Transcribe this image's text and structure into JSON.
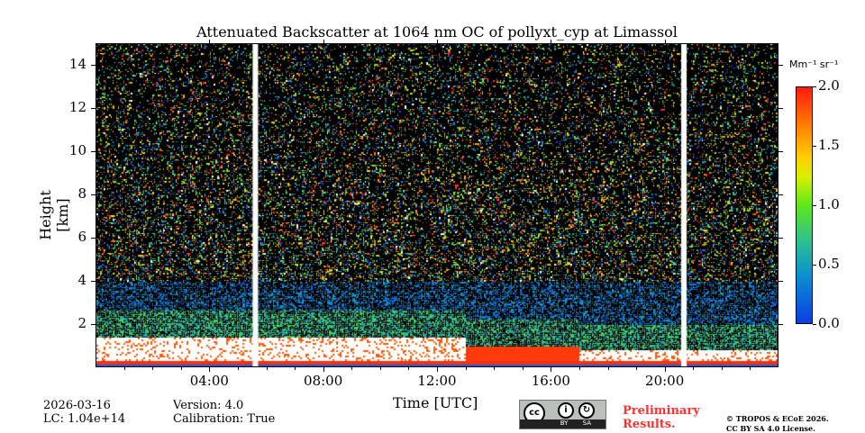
{
  "chart_data": {
    "type": "heatmap",
    "title": "Attenuated Backscatter at 1064 nm OC of pollyxt_cyp at Limassol",
    "xlabel": "Time [UTC]",
    "ylabel": "Height [km]",
    "xlim_hours": [
      0,
      24
    ],
    "ylim_km": [
      0,
      15
    ],
    "xticks": [
      {
        "h": 4,
        "label": "04:00"
      },
      {
        "h": 8,
        "label": "08:00"
      },
      {
        "h": 12,
        "label": "12:00"
      },
      {
        "h": 16,
        "label": "16:00"
      },
      {
        "h": 20,
        "label": "20:00"
      }
    ],
    "yticks": [
      {
        "v": 2,
        "label": "2"
      },
      {
        "v": 4,
        "label": "4"
      },
      {
        "v": 6,
        "label": "6"
      },
      {
        "v": 8,
        "label": "8"
      },
      {
        "v": 10,
        "label": "10"
      },
      {
        "v": 12,
        "label": "12"
      },
      {
        "v": 14,
        "label": "14"
      }
    ],
    "data_gaps_hours": [
      5.6,
      20.7
    ],
    "colorbar": {
      "label": "Mm⁻¹ sr⁻¹",
      "range": [
        0,
        2.0
      ],
      "ticks": [
        {
          "v": 0,
          "label": "0.0"
        },
        {
          "v": 0.5,
          "label": "0.5"
        },
        {
          "v": 1,
          "label": "1.0"
        },
        {
          "v": 1.5,
          "label": "1.5"
        },
        {
          "v": 2,
          "label": "2.0"
        }
      ]
    }
  },
  "footer": {
    "date": "2026-03-16",
    "lc": "LC: 1.04e+14",
    "version": "Version: 4.0",
    "calibration": "Calibration: True",
    "preliminary": "Preliminary\nResults.",
    "copyright1": "© TROPOS & ECoE 2026.",
    "copyright2": "CC BY SA 4.0 License.",
    "cc_logo": "cc BY SA"
  }
}
